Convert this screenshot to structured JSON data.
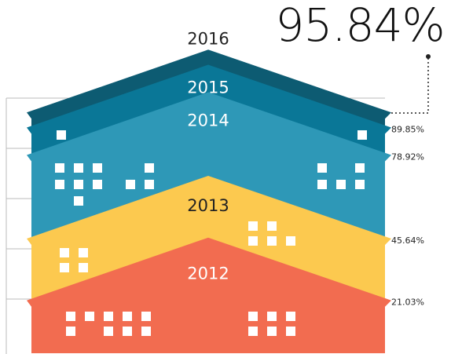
{
  "chart_data": {
    "type": "house",
    "categories": [
      "2012",
      "2013",
      "2014",
      "2015",
      "2016"
    ],
    "values": [
      21.03,
      45.64,
      78.92,
      89.85,
      95.84
    ],
    "value_labels": [
      "21.03%",
      "45.64%",
      "78.92%",
      "89.85%",
      "95.84%"
    ],
    "colors": [
      "#f26c50",
      "#fcc94f",
      "#2e98b7",
      "#0a7797",
      "#0d5b72"
    ],
    "ylim": [
      0,
      100
    ],
    "yticks": [
      20,
      40,
      60,
      80,
      100
    ],
    "grid": true
  }
}
